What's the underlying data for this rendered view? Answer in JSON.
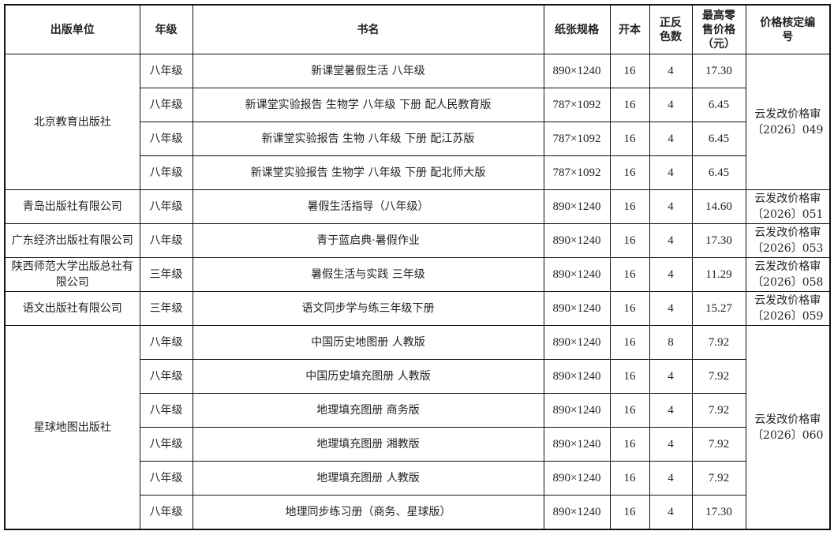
{
  "headers": [
    "出版单位",
    "年级",
    "书名",
    "纸张规格",
    "开本",
    "正反色数",
    "最高零售价格（元）",
    "价格核定编号"
  ],
  "groups": [
    {
      "publisher": "北京教育出版社",
      "code": "云发改价格审〔2026〕049",
      "books": [
        {
          "grade": "八年级",
          "title": "新课堂暑假生活 八年级",
          "paper": "890×1240",
          "format": "16",
          "colors": "4",
          "price": "17.30"
        },
        {
          "grade": "八年级",
          "title": "新课堂实验报告 生物学 八年级 下册 配人民教育版",
          "paper": "787×1092",
          "format": "16",
          "colors": "4",
          "price": "6.45"
        },
        {
          "grade": "八年级",
          "title": "新课堂实验报告 生物 八年级 下册 配江苏版",
          "paper": "787×1092",
          "format": "16",
          "colors": "4",
          "price": "6.45"
        },
        {
          "grade": "八年级",
          "title": "新课堂实验报告 生物学 八年级 下册 配北师大版",
          "paper": "787×1092",
          "format": "16",
          "colors": "4",
          "price": "6.45"
        }
      ]
    },
    {
      "publisher": "青岛出版社有限公司",
      "code": "云发改价格审〔2026〕051",
      "books": [
        {
          "grade": "八年级",
          "title": "暑假生活指导（八年级）",
          "paper": "890×1240",
          "format": "16",
          "colors": "4",
          "price": "14.60"
        }
      ]
    },
    {
      "publisher": "广东经济出版社有限公司",
      "code": "云发改价格审〔2026〕053",
      "books": [
        {
          "grade": "八年级",
          "title": "青于蓝启典·暑假作业",
          "paper": "890×1240",
          "format": "16",
          "colors": "4",
          "price": "17.30"
        }
      ]
    },
    {
      "publisher": "陕西师范大学出版总社有限公司",
      "code": "云发改价格审〔2026〕058",
      "books": [
        {
          "grade": "三年级",
          "title": "暑假生活与实践 三年级",
          "paper": "890×1240",
          "format": "16",
          "colors": "4",
          "price": "11.29"
        }
      ]
    },
    {
      "publisher": "语文出版社有限公司",
      "code": "云发改价格审〔2026〕059",
      "books": [
        {
          "grade": "三年级",
          "title": "语文同步学与练三年级下册",
          "paper": "890×1240",
          "format": "16",
          "colors": "4",
          "price": "15.27"
        }
      ]
    },
    {
      "publisher": "星球地图出版社",
      "code": "云发改价格审〔2026〕060",
      "books": [
        {
          "grade": "八年级",
          "title": "中国历史地图册 人教版",
          "paper": "890×1240",
          "format": "16",
          "colors": "8",
          "price": "7.92"
        },
        {
          "grade": "八年级",
          "title": "中国历史填充图册 人教版",
          "paper": "890×1240",
          "format": "16",
          "colors": "4",
          "price": "7.92"
        },
        {
          "grade": "八年级",
          "title": "地理填充图册 商务版",
          "paper": "890×1240",
          "format": "16",
          "colors": "4",
          "price": "7.92"
        },
        {
          "grade": "八年级",
          "title": "地理填充图册 湘教版",
          "paper": "890×1240",
          "format": "16",
          "colors": "4",
          "price": "7.92"
        },
        {
          "grade": "八年级",
          "title": "地理填充图册 人教版",
          "paper": "890×1240",
          "format": "16",
          "colors": "4",
          "price": "7.92"
        },
        {
          "grade": "八年级",
          "title": "地理同步练习册（商务、星球版）",
          "paper": "890×1240",
          "format": "16",
          "colors": "4",
          "price": "17.30"
        }
      ]
    }
  ]
}
